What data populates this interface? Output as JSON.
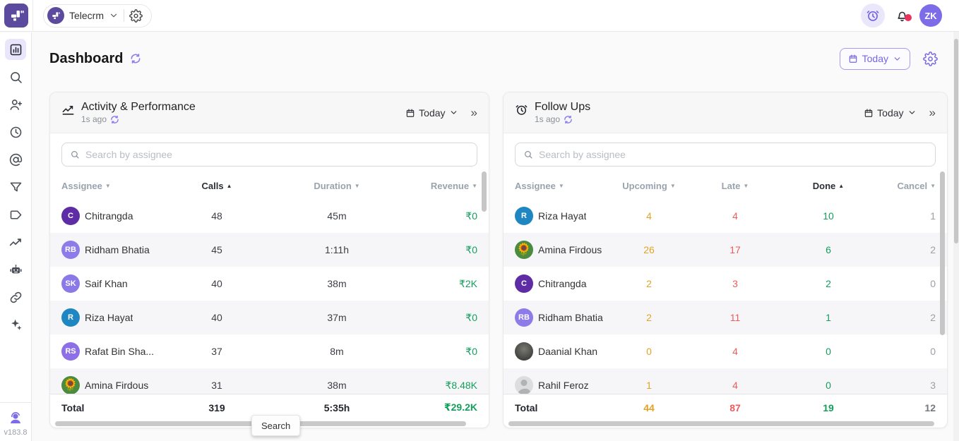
{
  "topbar": {
    "workspace": "Telecrm",
    "avatar": "ZK"
  },
  "page": {
    "title": "Dashboard",
    "date_filter": "Today",
    "version": "v183.8",
    "tooltip": "Search"
  },
  "sidebar": {
    "icons": [
      "dashboard",
      "search",
      "add-user",
      "recent",
      "mentions",
      "filters",
      "tags",
      "analytics",
      "bot",
      "integrations",
      "ai-assist",
      "support"
    ]
  },
  "activity": {
    "title": "Activity & Performance",
    "updated": "1s ago",
    "date_filter": "Today",
    "search_placeholder": "Search by assignee",
    "columns": [
      {
        "label": "Assignee",
        "sort": "desc",
        "active": false
      },
      {
        "label": "Calls",
        "sort": "asc",
        "active": true
      },
      {
        "label": "Duration",
        "sort": "desc",
        "active": false
      },
      {
        "label": "Revenue",
        "sort": "desc",
        "active": false
      }
    ],
    "rows": [
      {
        "name": "Chitrangda",
        "avatar": {
          "type": "initials",
          "text": "C",
          "bg": "#5e2ca5"
        },
        "calls": "48",
        "duration": "45m",
        "revenue": "₹0"
      },
      {
        "name": "Ridham Bhatia",
        "avatar": {
          "type": "initials",
          "text": "RB",
          "bg": "#8d7bea"
        },
        "calls": "45",
        "duration": "1:11h",
        "revenue": "₹0"
      },
      {
        "name": "Saif Khan",
        "avatar": {
          "type": "initials",
          "text": "SK",
          "bg": "#8a79e6"
        },
        "calls": "40",
        "duration": "38m",
        "revenue": "₹2K"
      },
      {
        "name": "Riza Hayat",
        "avatar": {
          "type": "initials",
          "text": "R",
          "bg": "#1e87c2"
        },
        "calls": "40",
        "duration": "37m",
        "revenue": "₹0"
      },
      {
        "name": "Rafat Bin Sha...",
        "avatar": {
          "type": "initials",
          "text": "RS",
          "bg": "#8d6fe8"
        },
        "calls": "37",
        "duration": "8m",
        "revenue": "₹0"
      },
      {
        "name": "Amina Firdous",
        "avatar": {
          "type": "emoji",
          "text": "🌻",
          "bg": "#4c8a3f"
        },
        "calls": "31",
        "duration": "38m",
        "revenue": "₹8.48K"
      }
    ],
    "total": {
      "label": "Total",
      "calls": "319",
      "duration": "5:35h",
      "revenue": "₹29.2K"
    }
  },
  "followups": {
    "title": "Follow Ups",
    "updated": "1s ago",
    "date_filter": "Today",
    "search_placeholder": "Search by assignee",
    "columns": [
      {
        "label": "Assignee",
        "sort": "desc",
        "active": false
      },
      {
        "label": "Upcoming",
        "sort": "desc",
        "active": false
      },
      {
        "label": "Late",
        "sort": "desc",
        "active": false
      },
      {
        "label": "Done",
        "sort": "asc",
        "active": true
      },
      {
        "label": "Cancel",
        "sort": "desc",
        "active": false
      }
    ],
    "rows": [
      {
        "name": "Riza Hayat",
        "avatar": {
          "type": "initials",
          "text": "R",
          "bg": "#1e87c2"
        },
        "upcoming": "4",
        "late": "4",
        "done": "10",
        "cancel": "1"
      },
      {
        "name": "Amina Firdous",
        "avatar": {
          "type": "emoji",
          "text": "🌻",
          "bg": "#4c8a3f"
        },
        "upcoming": "26",
        "late": "17",
        "done": "6",
        "cancel": "2"
      },
      {
        "name": "Chitrangda",
        "avatar": {
          "type": "initials",
          "text": "C",
          "bg": "#5e2ca5"
        },
        "upcoming": "2",
        "late": "3",
        "done": "2",
        "cancel": "0"
      },
      {
        "name": "Ridham Bhatia",
        "avatar": {
          "type": "initials",
          "text": "RB",
          "bg": "#8d7bea"
        },
        "upcoming": "2",
        "late": "11",
        "done": "1",
        "cancel": "2"
      },
      {
        "name": "Daanial Khan",
        "avatar": {
          "type": "photo",
          "text": "",
          "bg": "#3c3c3c"
        },
        "upcoming": "0",
        "late": "4",
        "done": "0",
        "cancel": "0"
      },
      {
        "name": "Rahil Feroz",
        "avatar": {
          "type": "placeholder",
          "text": "",
          "bg": "#d8d8d8"
        },
        "upcoming": "1",
        "late": "4",
        "done": "0",
        "cancel": "3"
      }
    ],
    "total": {
      "label": "Total",
      "upcoming": "44",
      "late": "87",
      "done": "19",
      "cancel": "12"
    }
  },
  "colors": {
    "accent": "#7566e1",
    "green": "#149e5c",
    "amber": "#e0a526",
    "red": "#f15b5b",
    "muted_gray": "#9aa0a7"
  }
}
